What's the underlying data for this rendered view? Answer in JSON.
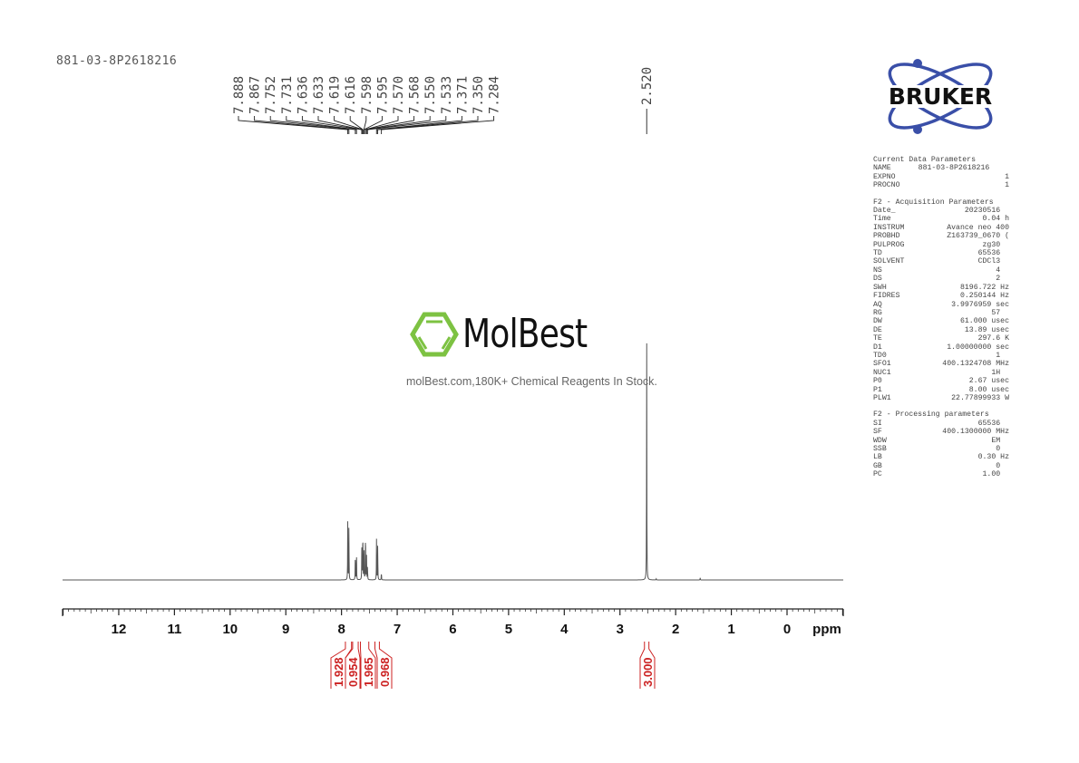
{
  "sample_name": "881-03-8P2618216",
  "logo": {
    "text": "BRUKER",
    "color": "#3a4fa8"
  },
  "watermark": {
    "brand": "MolBest",
    "tagline": "molBest.com,180K+ Chemical Reagents In Stock.",
    "color": "#7dc242"
  },
  "parameters": {
    "current": {
      "title": "Current Data Parameters",
      "rows": [
        [
          "NAME",
          "881-03-8P2618216"
        ],
        [
          "EXPNO",
          "1"
        ],
        [
          "PROCNO",
          "1"
        ]
      ]
    },
    "acquisition": {
      "title": "F2 - Acquisition Parameters",
      "rows": [
        [
          "Date_",
          "20230516  "
        ],
        [
          "Time",
          "0.04 h"
        ],
        [
          "INSTRUM",
          "Avance neo 400"
        ],
        [
          "PROBHD",
          "Z163739_0670 ("
        ],
        [
          "PULPROG",
          "zg30  "
        ],
        [
          "TD",
          "65536  "
        ],
        [
          "SOLVENT",
          "CDCl3  "
        ],
        [
          "NS",
          "4  "
        ],
        [
          "DS",
          "2  "
        ],
        [
          "SWH",
          "8196.722 Hz"
        ],
        [
          "FIDRES",
          "0.250144 Hz"
        ],
        [
          "AQ",
          "3.9976959 sec"
        ],
        [
          "RG",
          "57  "
        ],
        [
          "DW",
          "61.000 usec"
        ],
        [
          "DE",
          "13.89 usec"
        ],
        [
          "TE",
          "297.6 K"
        ],
        [
          "D1",
          "1.00000000 sec"
        ],
        [
          "TD0",
          "1  "
        ],
        [
          "SFO1",
          "400.1324708 MHz"
        ],
        [
          "NUC1",
          "1H  "
        ],
        [
          "P0",
          "2.67 usec"
        ],
        [
          "P1",
          "8.00 usec"
        ],
        [
          "PLW1",
          "22.77899933 W"
        ]
      ]
    },
    "processing": {
      "title": "F2 - Processing parameters",
      "rows": [
        [
          "SI",
          "65536  "
        ],
        [
          "SF",
          "400.1300000 MHz"
        ],
        [
          "WDW",
          "EM  "
        ],
        [
          "SSB",
          "0  "
        ],
        [
          "LB",
          "0.30 Hz"
        ],
        [
          "GB",
          "0  "
        ],
        [
          "PC",
          "1.00  "
        ]
      ]
    }
  },
  "chart_data": {
    "type": "line",
    "xlabel": "ppm",
    "xlim": [
      13,
      -1
    ],
    "x_reversed": true,
    "xticks": [
      12,
      11,
      10,
      9,
      8,
      7,
      6,
      5,
      4,
      3,
      2,
      1,
      0
    ],
    "grid": false,
    "line_color": "#555555",
    "integral_color": "#cc2222",
    "peaks": [
      {
        "ppm": 7.888,
        "height": 0.24
      },
      {
        "ppm": 7.867,
        "height": 0.24
      },
      {
        "ppm": 7.752,
        "height": 0.13
      },
      {
        "ppm": 7.731,
        "height": 0.12
      },
      {
        "ppm": 7.636,
        "height": 0.09
      },
      {
        "ppm": 7.633,
        "height": 0.09
      },
      {
        "ppm": 7.619,
        "height": 0.11
      },
      {
        "ppm": 7.616,
        "height": 0.11
      },
      {
        "ppm": 7.598,
        "height": 0.08
      },
      {
        "ppm": 7.595,
        "height": 0.08
      },
      {
        "ppm": 7.57,
        "height": 0.11
      },
      {
        "ppm": 7.568,
        "height": 0.11
      },
      {
        "ppm": 7.55,
        "height": 0.1
      },
      {
        "ppm": 7.533,
        "height": 0.06
      },
      {
        "ppm": 7.371,
        "height": 0.17
      },
      {
        "ppm": 7.35,
        "height": 0.16
      },
      {
        "ppm": 7.284,
        "height": 0.035
      },
      {
        "ppm": 2.52,
        "height": 1.0
      },
      {
        "ppm": 2.35,
        "height": 0.006
      },
      {
        "ppm": 1.56,
        "height": 0.01
      }
    ],
    "peak_labels": [
      "7.888",
      "7.867",
      "7.752",
      "7.731",
      "7.636",
      "7.633",
      "7.619",
      "7.616",
      "7.598",
      "7.595",
      "7.570",
      "7.568",
      "7.550",
      "7.533",
      "7.371",
      "7.350",
      "7.284"
    ],
    "peak_label_single": "2.520",
    "integrals": [
      {
        "from": 7.93,
        "to": 7.82,
        "value": "1.928"
      },
      {
        "from": 7.8,
        "to": 7.7,
        "value": "0.954"
      },
      {
        "from": 7.66,
        "to": 7.51,
        "value": "1.965"
      },
      {
        "from": 7.4,
        "to": 7.32,
        "value": "0.968"
      },
      {
        "from": 2.56,
        "to": 2.48,
        "value": "3.000"
      }
    ]
  }
}
